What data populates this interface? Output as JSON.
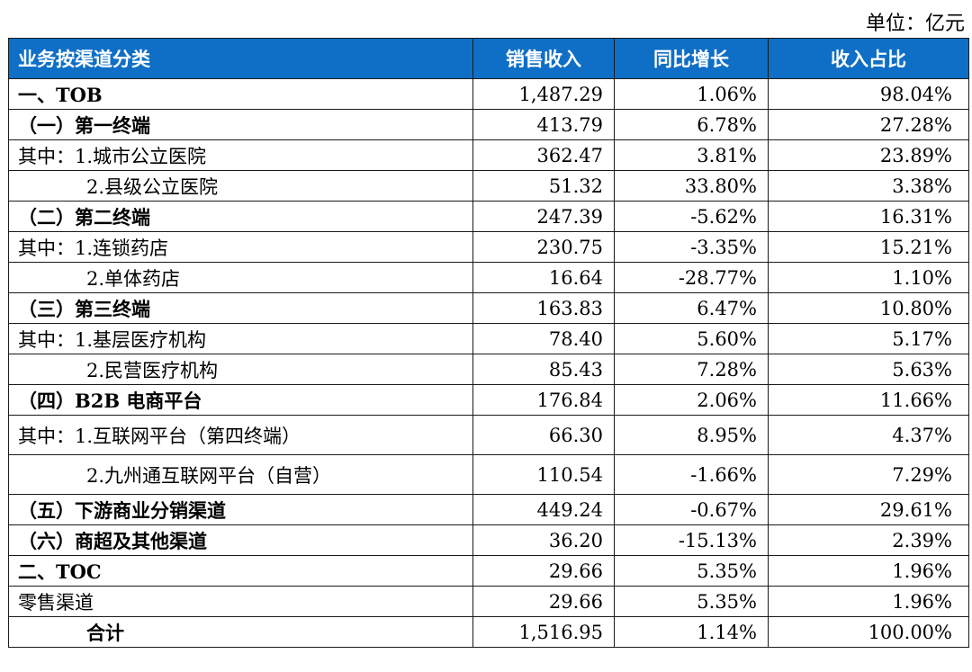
{
  "unit_label": "单位：亿元",
  "headers": [
    "业务按渠道分类",
    "销售收入",
    "同比增长",
    "收入占比"
  ],
  "rows": [
    {
      "label": "一、TOB",
      "sales": "1,487.29",
      "growth": "1.06%",
      "share": "98.04%"
    },
    {
      "label": "（一）第一终端",
      "sales": "413.79",
      "growth": "6.78%",
      "share": "27.28%"
    },
    {
      "label": "其中：1.城市公立医院",
      "sales": "362.47",
      "growth": "3.81%",
      "share": "23.89%"
    },
    {
      "label": "2.县级公立医院",
      "sales": "51.32",
      "growth": "33.80%",
      "share": "3.38%"
    },
    {
      "label": "（二）第二终端",
      "sales": "247.39",
      "growth": "-5.62%",
      "share": "16.31%"
    },
    {
      "label": "其中：1.连锁药店",
      "sales": "230.75",
      "growth": "-3.35%",
      "share": "15.21%"
    },
    {
      "label": "2.单体药店",
      "sales": "16.64",
      "growth": "-28.77%",
      "share": "1.10%"
    },
    {
      "label": "（三）第三终端",
      "sales": "163.83",
      "growth": "6.47%",
      "share": "10.80%"
    },
    {
      "label": "其中：1.基层医疗机构",
      "sales": "78.40",
      "growth": "5.60%",
      "share": "5.17%"
    },
    {
      "label": "2.民营医疗机构",
      "sales": "85.43",
      "growth": "7.28%",
      "share": "5.63%"
    },
    {
      "label": "（四）B2B 电商平台",
      "sales": "176.84",
      "growth": "2.06%",
      "share": "11.66%"
    },
    {
      "label": "其中：1.互联网平台（第四终端）",
      "sales": "66.30",
      "growth": "8.95%",
      "share": "4.37%"
    },
    {
      "label": "2.九州通互联网平台（自营）",
      "sales": "110.54",
      "growth": "-1.66%",
      "share": "7.29%"
    },
    {
      "label": "（五）下游商业分销渠道",
      "sales": "449.24",
      "growth": "-0.67%",
      "share": "29.61%"
    },
    {
      "label": "（六）商超及其他渠道",
      "sales": "36.20",
      "growth": "-15.13%",
      "share": "2.39%"
    },
    {
      "label": "二、TOC",
      "sales": "29.66",
      "growth": "5.35%",
      "share": "1.96%"
    },
    {
      "label": "零售渠道",
      "sales": "29.66",
      "growth": "5.35%",
      "share": "1.96%"
    },
    {
      "label": "合计",
      "sales": "1,516.95",
      "growth": "1.14%",
      "share": "100.00%"
    }
  ]
}
